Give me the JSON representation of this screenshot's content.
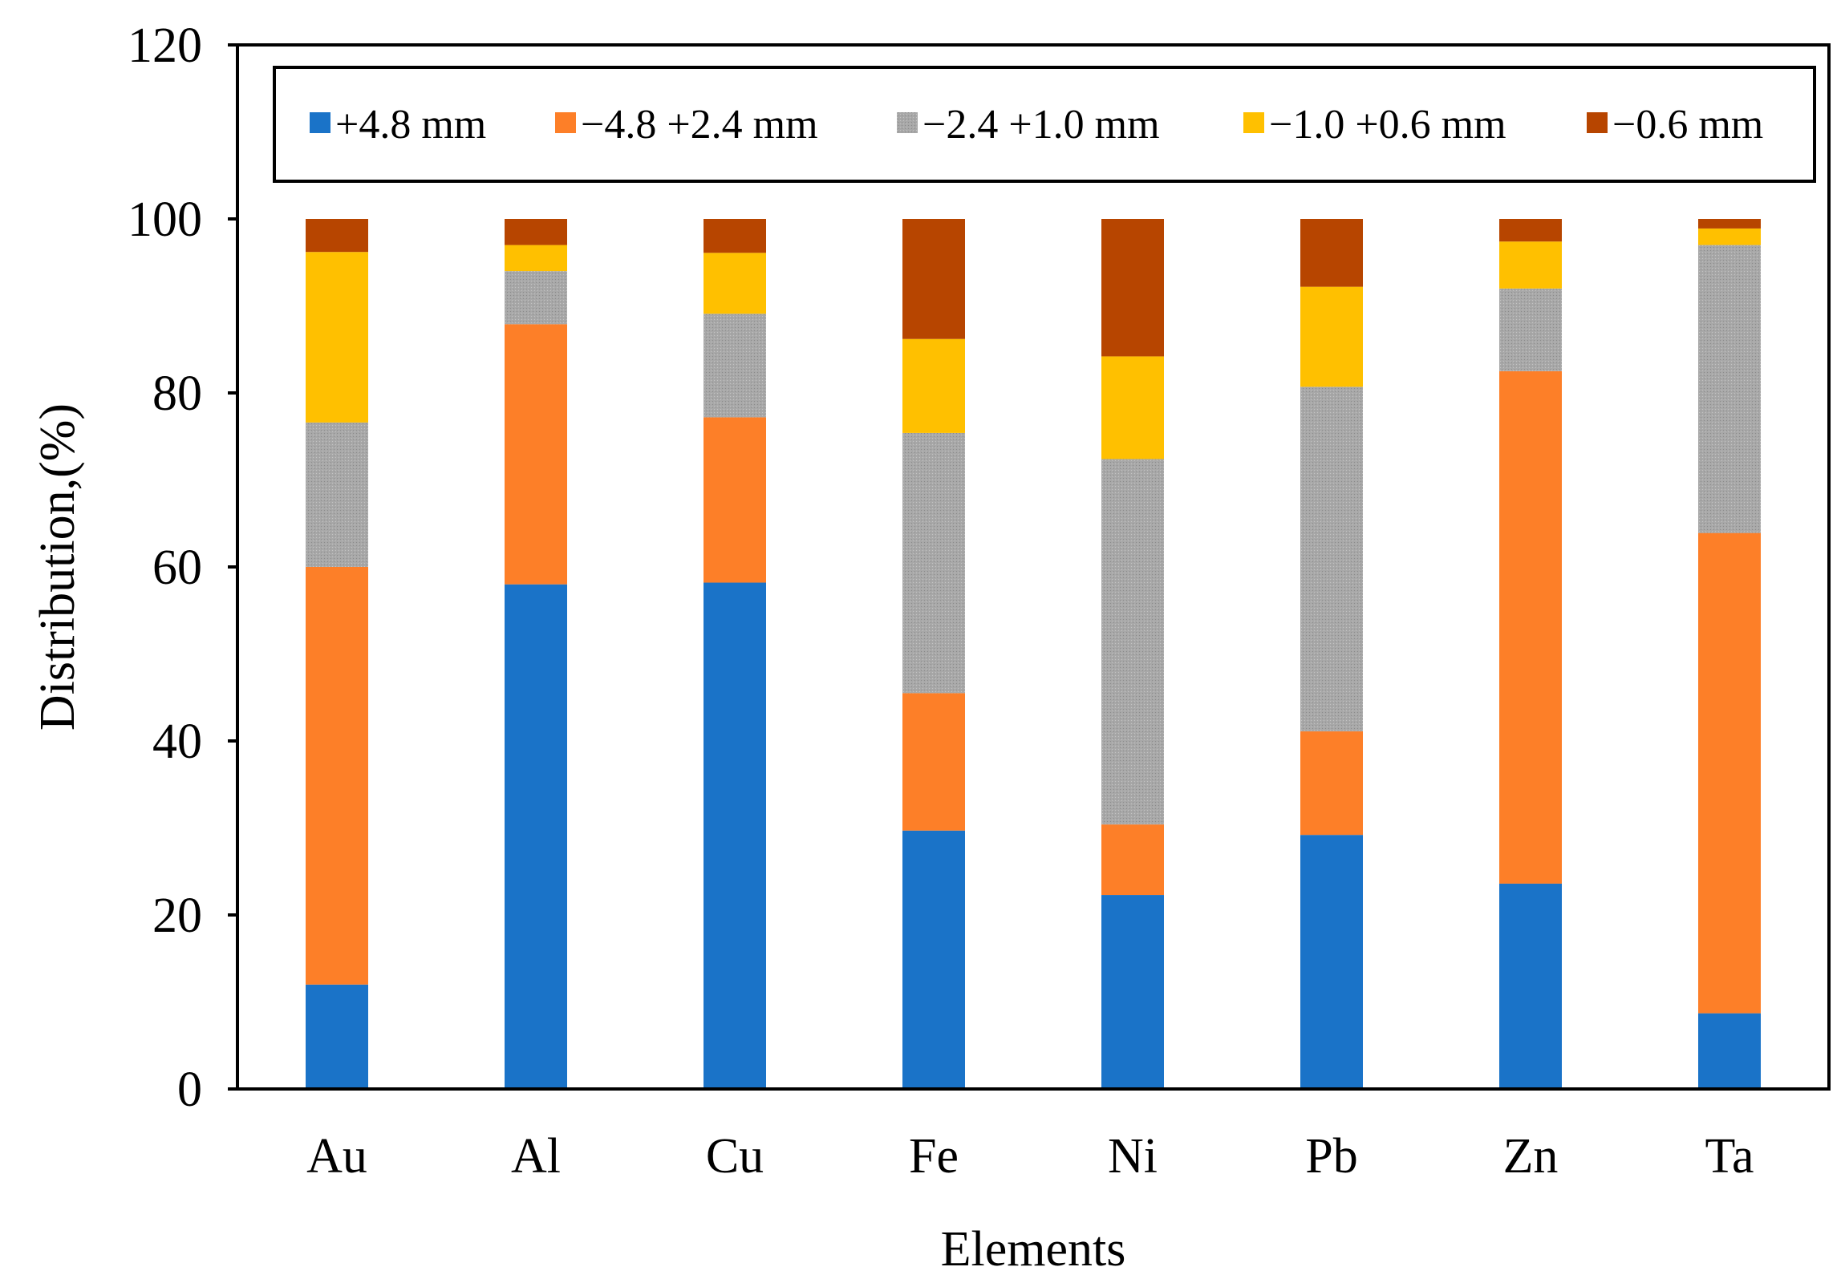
{
  "chart_data": {
    "type": "bar",
    "stacked": true,
    "title": "",
    "xlabel": "Elements",
    "ylabel": "Distribution,(%)",
    "ylim": [
      0,
      120
    ],
    "yticks": [
      "0",
      "20",
      "40",
      "60",
      "80",
      "100",
      "120"
    ],
    "grid": false,
    "legend_position": "top",
    "categories": [
      "Au",
      "Al",
      "Cu",
      "Fe",
      "Ni",
      "Pb",
      "Zn",
      "Ta"
    ],
    "series": [
      {
        "name": "+4.8 mm",
        "color": "#1a73c8",
        "values": [
          12.0,
          58.0,
          58.2,
          29.7,
          22.3,
          29.2,
          23.6,
          8.7
        ]
      },
      {
        "name": "−4.8 +2.4 mm",
        "color": "#fd7f28",
        "values": [
          48.0,
          29.9,
          19.0,
          15.8,
          8.1,
          11.9,
          58.9,
          55.2
        ]
      },
      {
        "name": "−2.4 +1.0 mm",
        "color": "#a6a6a6",
        "values": [
          16.6,
          6.1,
          11.9,
          29.9,
          42.0,
          39.6,
          9.5,
          33.1
        ]
      },
      {
        "name": "−1.0 +0.6 mm",
        "color": "#ffc000",
        "values": [
          19.6,
          3.0,
          7.0,
          10.8,
          11.8,
          11.5,
          5.4,
          1.9
        ]
      },
      {
        "name": "−0.6 mm",
        "color": "#b74500",
        "values": [
          3.8,
          3.0,
          3.9,
          13.8,
          15.8,
          7.8,
          2.6,
          1.1
        ]
      }
    ]
  }
}
